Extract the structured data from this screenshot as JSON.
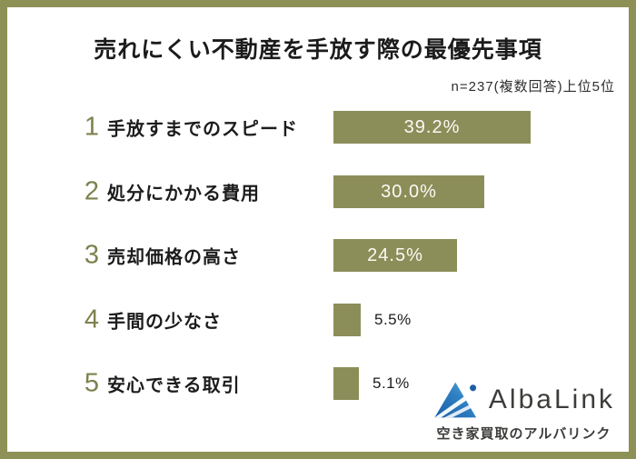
{
  "chart_data": {
    "type": "bar",
    "orientation": "horizontal",
    "title": "売れにくい不動産を手放す際の最優先事項",
    "subtitle": "n=237(複数回答)上位5位",
    "categories": [
      "手放すまでのスピード",
      "処分にかかる費用",
      "売却価格の高さ",
      "手間の少なさ",
      "安心できる取引"
    ],
    "values": [
      39.2,
      30.0,
      24.5,
      5.5,
      5.1
    ],
    "value_labels": [
      "39.2%",
      "30.0%",
      "24.5%",
      "5.5%",
      "5.1%"
    ],
    "xlim": [
      0,
      40
    ],
    "grid": false,
    "legend": false
  },
  "header": {
    "title": "売れにくい不動産を手放す際の最優先事項",
    "subtitle": "n=237(複数回答)上位5位"
  },
  "rows": [
    {
      "rank": "1",
      "label": "手放すまでのスピード",
      "value": 39.2,
      "value_label": "39.2%",
      "label_inside": true
    },
    {
      "rank": "2",
      "label": "処分にかかる費用",
      "value": 30.0,
      "value_label": "30.0%",
      "label_inside": true
    },
    {
      "rank": "3",
      "label": "売却価格の高さ",
      "value": 24.5,
      "value_label": "24.5%",
      "label_inside": true
    },
    {
      "rank": "4",
      "label": "手間の少なさ",
      "value": 5.5,
      "value_label": "5.5%",
      "label_inside": false
    },
    {
      "rank": "5",
      "label": "安心できる取引",
      "value": 5.1,
      "value_label": "5.1%",
      "label_inside": false
    }
  ],
  "branding": {
    "wordmark": "AlbaLink",
    "tagline": "空き家買取のアルバリンク"
  },
  "colors": {
    "bar": "#8C8E59",
    "border": "#8E9156",
    "rank": "#7E814D",
    "logo_blue_light": "#54A8DC",
    "logo_blue_dark": "#1A5FA5"
  }
}
